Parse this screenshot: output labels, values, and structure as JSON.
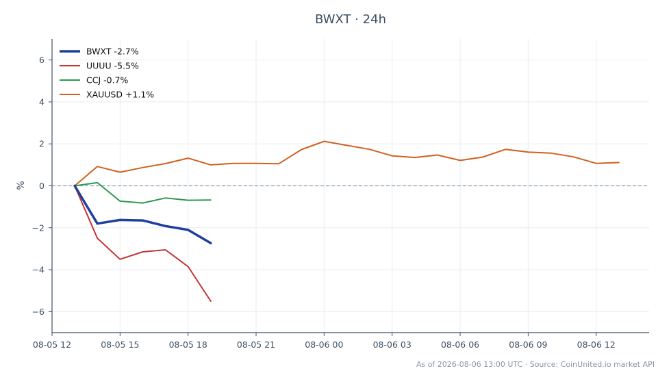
{
  "chart_data": {
    "type": "line",
    "title": "BWXT · 24h",
    "xlabel": "",
    "ylabel": "%",
    "ylim": [
      -7,
      7
    ],
    "grid": true,
    "legend_position": "top-left",
    "zero_line": 0,
    "xlim": [
      "08-05 12:00",
      "08-06 14:20"
    ],
    "x_ticks": [
      {
        "t": "08-05 12:00",
        "label": "08-05 12"
      },
      {
        "t": "08-05 15:00",
        "label": "08-05 15"
      },
      {
        "t": "08-05 18:00",
        "label": "08-05 18"
      },
      {
        "t": "08-05 21:00",
        "label": "08-05 21"
      },
      {
        "t": "08-06 00:00",
        "label": "08-06 00"
      },
      {
        "t": "08-06 03:00",
        "label": "08-06 03"
      },
      {
        "t": "08-06 06:00",
        "label": "08-06 06"
      },
      {
        "t": "08-06 09:00",
        "label": "08-06 09"
      },
      {
        "t": "08-06 12:00",
        "label": "08-06 12"
      }
    ],
    "y_ticks": [
      {
        "v": -6,
        "label": "−6"
      },
      {
        "v": -4,
        "label": "−4"
      },
      {
        "v": -2,
        "label": "−2"
      },
      {
        "v": 0,
        "label": "0"
      },
      {
        "v": 2,
        "label": "2"
      },
      {
        "v": 4,
        "label": "4"
      },
      {
        "v": 6,
        "label": "6"
      }
    ],
    "series": [
      {
        "name": "BWXT -2.7%",
        "color": "#1f3f9f",
        "width": 3.5,
        "points": [
          [
            "08-05 13:00",
            0.0
          ],
          [
            "08-05 14:00",
            -1.8
          ],
          [
            "08-05 15:00",
            -1.63
          ],
          [
            "08-05 16:00",
            -1.65
          ],
          [
            "08-05 17:00",
            -1.92
          ],
          [
            "08-05 18:00",
            -2.1
          ],
          [
            "08-05 19:00",
            -2.73
          ]
        ]
      },
      {
        "name": "UUUU -5.5%",
        "color": "#c83232",
        "width": 2,
        "points": [
          [
            "08-05 13:00",
            0.0
          ],
          [
            "08-05 14:00",
            -2.5
          ],
          [
            "08-05 15:00",
            -3.5
          ],
          [
            "08-05 16:00",
            -3.15
          ],
          [
            "08-05 17:00",
            -3.05
          ],
          [
            "08-05 18:00",
            -3.85
          ],
          [
            "08-05 19:00",
            -5.5
          ]
        ]
      },
      {
        "name": "CCJ -0.7%",
        "color": "#2a9a4a",
        "width": 2,
        "points": [
          [
            "08-05 13:00",
            0.0
          ],
          [
            "08-05 14:00",
            0.15
          ],
          [
            "08-05 15:00",
            -0.73
          ],
          [
            "08-05 16:00",
            -0.82
          ],
          [
            "08-05 17:00",
            -0.58
          ],
          [
            "08-05 18:00",
            -0.69
          ],
          [
            "08-05 19:00",
            -0.68
          ]
        ]
      },
      {
        "name": "XAUUSD +1.1%",
        "color": "#d2601e",
        "width": 2,
        "points": [
          [
            "08-05 13:00",
            0.0
          ],
          [
            "08-05 14:00",
            0.92
          ],
          [
            "08-05 15:00",
            0.65
          ],
          [
            "08-05 16:00",
            0.87
          ],
          [
            "08-05 17:00",
            1.06
          ],
          [
            "08-05 18:00",
            1.32
          ],
          [
            "08-05 19:00",
            1.0
          ],
          [
            "08-05 20:00",
            1.07
          ],
          [
            "08-05 21:00",
            1.07
          ],
          [
            "08-05 22:00",
            1.05
          ],
          [
            "08-05 23:00",
            1.73
          ],
          [
            "08-06 00:00",
            2.12
          ],
          [
            "08-06 01:00",
            1.93
          ],
          [
            "08-06 02:00",
            1.74
          ],
          [
            "08-06 03:00",
            1.43
          ],
          [
            "08-06 04:00",
            1.35
          ],
          [
            "08-06 05:00",
            1.47
          ],
          [
            "08-06 06:00",
            1.21
          ],
          [
            "08-06 07:00",
            1.37
          ],
          [
            "08-06 08:00",
            1.74
          ],
          [
            "08-06 09:00",
            1.61
          ],
          [
            "08-06 10:00",
            1.56
          ],
          [
            "08-06 11:00",
            1.38
          ],
          [
            "08-06 12:00",
            1.07
          ],
          [
            "08-06 13:00",
            1.11
          ]
        ]
      }
    ]
  },
  "footer": "As of 2026-08-06 13:00 UTC · Source: CoinUnited.io market API",
  "colors": {
    "axis": "#3d4f63",
    "grid": "#e8ecf0",
    "zero_line": "#8aa0b4"
  }
}
